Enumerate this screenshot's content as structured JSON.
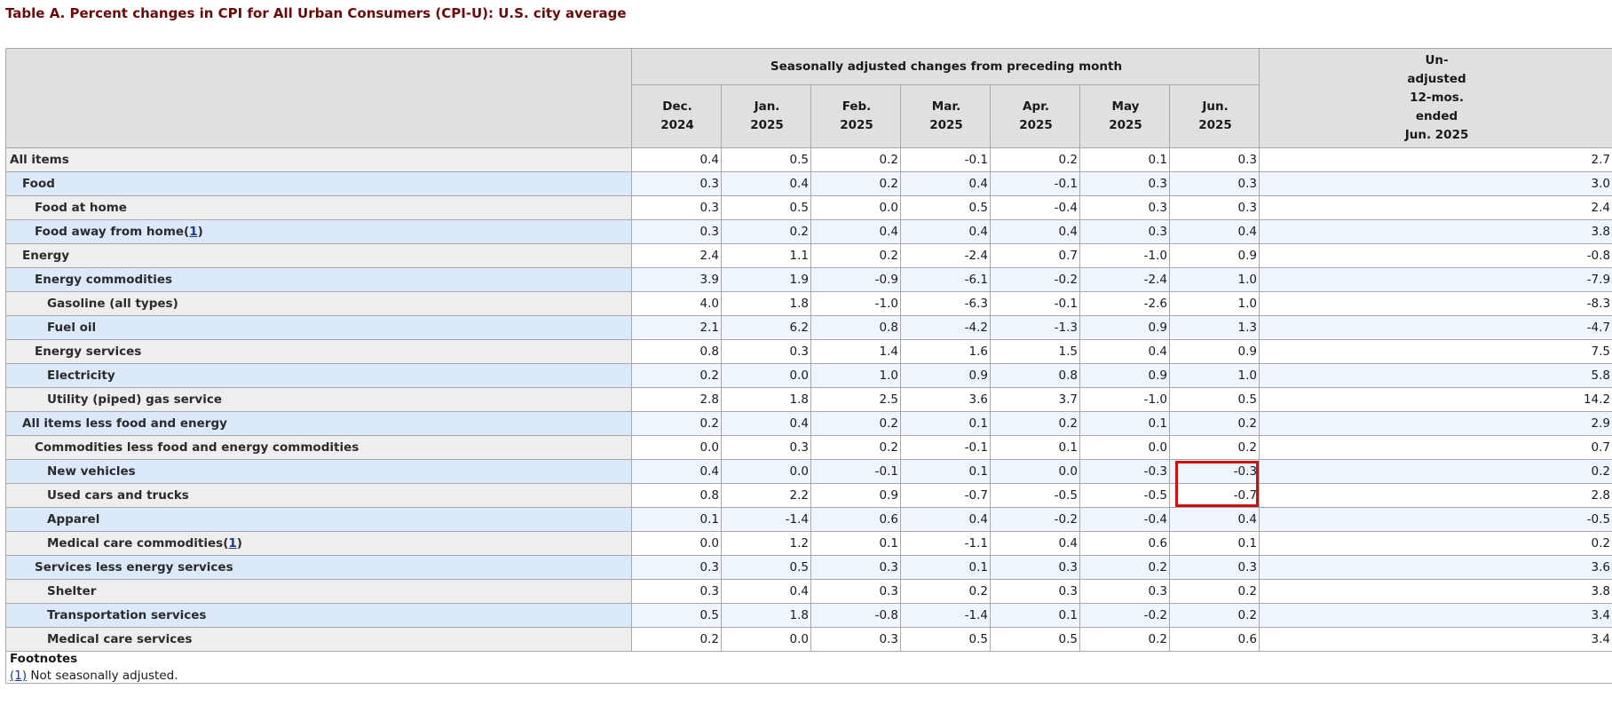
{
  "title": "Table A. Percent changes in CPI for All Urban Consumers (CPI-U): U.S. city average",
  "header": {
    "group": "Seasonally adjusted changes from preceding month",
    "months": [
      {
        "m": "Dec.",
        "y": "2024"
      },
      {
        "m": "Jan.",
        "y": "2025"
      },
      {
        "m": "Feb.",
        "y": "2025"
      },
      {
        "m": "Mar.",
        "y": "2025"
      },
      {
        "m": "Apr.",
        "y": "2025"
      },
      {
        "m": "May",
        "y": "2025"
      },
      {
        "m": "Jun.",
        "y": "2025"
      }
    ],
    "unadjusted": [
      "Un-",
      "adjusted",
      "12-mos.",
      "ended",
      "Jun. 2025"
    ]
  },
  "rows": [
    {
      "label": "All items",
      "indent": 0,
      "values": [
        "0.4",
        "0.5",
        "0.2",
        "-0.1",
        "0.2",
        "0.1",
        "0.3",
        "2.7"
      ]
    },
    {
      "label": "Food",
      "indent": 1,
      "values": [
        "0.3",
        "0.4",
        "0.2",
        "0.4",
        "-0.1",
        "0.3",
        "0.3",
        "3.0"
      ]
    },
    {
      "label": "Food at home",
      "indent": 2,
      "values": [
        "0.3",
        "0.5",
        "0.0",
        "0.5",
        "-0.4",
        "0.3",
        "0.3",
        "2.4"
      ]
    },
    {
      "label": "Food away from home",
      "indent": 2,
      "footnote": "1",
      "values": [
        "0.3",
        "0.2",
        "0.4",
        "0.4",
        "0.4",
        "0.3",
        "0.4",
        "3.8"
      ]
    },
    {
      "label": "Energy",
      "indent": 1,
      "values": [
        "2.4",
        "1.1",
        "0.2",
        "-2.4",
        "0.7",
        "-1.0",
        "0.9",
        "-0.8"
      ]
    },
    {
      "label": "Energy commodities",
      "indent": 2,
      "values": [
        "3.9",
        "1.9",
        "-0.9",
        "-6.1",
        "-0.2",
        "-2.4",
        "1.0",
        "-7.9"
      ]
    },
    {
      "label": "Gasoline (all types)",
      "indent": 3,
      "values": [
        "4.0",
        "1.8",
        "-1.0",
        "-6.3",
        "-0.1",
        "-2.6",
        "1.0",
        "-8.3"
      ]
    },
    {
      "label": "Fuel oil",
      "indent": 3,
      "values": [
        "2.1",
        "6.2",
        "0.8",
        "-4.2",
        "-1.3",
        "0.9",
        "1.3",
        "-4.7"
      ]
    },
    {
      "label": "Energy services",
      "indent": 2,
      "values": [
        "0.8",
        "0.3",
        "1.4",
        "1.6",
        "1.5",
        "0.4",
        "0.9",
        "7.5"
      ]
    },
    {
      "label": "Electricity",
      "indent": 3,
      "values": [
        "0.2",
        "0.0",
        "1.0",
        "0.9",
        "0.8",
        "0.9",
        "1.0",
        "5.8"
      ]
    },
    {
      "label": "Utility (piped) gas service",
      "indent": 3,
      "values": [
        "2.8",
        "1.8",
        "2.5",
        "3.6",
        "3.7",
        "-1.0",
        "0.5",
        "14.2"
      ]
    },
    {
      "label": "All items less food and energy",
      "indent": 1,
      "values": [
        "0.2",
        "0.4",
        "0.2",
        "0.1",
        "0.2",
        "0.1",
        "0.2",
        "2.9"
      ]
    },
    {
      "label": "Commodities less food and energy commodities",
      "indent": 2,
      "values": [
        "0.0",
        "0.3",
        "0.2",
        "-0.1",
        "0.1",
        "0.0",
        "0.2",
        "0.7"
      ]
    },
    {
      "label": "New vehicles",
      "indent": 3,
      "values": [
        "0.4",
        "0.0",
        "-0.1",
        "0.1",
        "0.0",
        "-0.3",
        "-0.3",
        "0.2"
      ]
    },
    {
      "label": "Used cars and trucks",
      "indent": 3,
      "values": [
        "0.8",
        "2.2",
        "0.9",
        "-0.7",
        "-0.5",
        "-0.5",
        "-0.7",
        "2.8"
      ]
    },
    {
      "label": "Apparel",
      "indent": 3,
      "values": [
        "0.1",
        "-1.4",
        "0.6",
        "0.4",
        "-0.2",
        "-0.4",
        "0.4",
        "-0.5"
      ]
    },
    {
      "label": "Medical care commodities",
      "indent": 3,
      "footnote": "1",
      "values": [
        "0.0",
        "1.2",
        "0.1",
        "-1.1",
        "0.4",
        "0.6",
        "0.1",
        "0.2"
      ]
    },
    {
      "label": "Services less energy services",
      "indent": 2,
      "values": [
        "0.3",
        "0.5",
        "0.3",
        "0.1",
        "0.3",
        "0.2",
        "0.3",
        "3.6"
      ]
    },
    {
      "label": "Shelter",
      "indent": 3,
      "values": [
        "0.3",
        "0.4",
        "0.3",
        "0.2",
        "0.3",
        "0.3",
        "0.2",
        "3.8"
      ]
    },
    {
      "label": "Transportation services",
      "indent": 3,
      "values": [
        "0.5",
        "1.8",
        "-0.8",
        "-1.4",
        "0.1",
        "-0.2",
        "0.2",
        "3.4"
      ]
    },
    {
      "label": "Medical care services",
      "indent": 3,
      "values": [
        "0.2",
        "0.0",
        "0.3",
        "0.5",
        "0.5",
        "0.2",
        "0.6",
        "3.4"
      ]
    }
  ],
  "highlight": {
    "color": "#cc1111"
  },
  "footnotes": {
    "title": "Footnotes",
    "items": [
      {
        "marker": "(1)",
        "text": " Not seasonally adjusted."
      }
    ]
  }
}
